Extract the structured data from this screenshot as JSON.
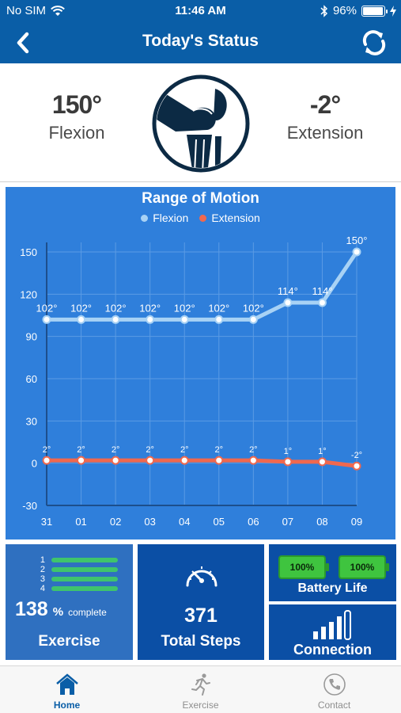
{
  "status_bar": {
    "carrier": "No SIM",
    "time": "11:46 AM",
    "battery_pct": "96%",
    "battery_level": 0.96
  },
  "nav": {
    "title": "Today's Status",
    "back_icon": "chevron-left-icon",
    "refresh_icon": "refresh-icon"
  },
  "summary": {
    "flexion_value": "150°",
    "flexion_label": "Flexion",
    "extension_value": "-2°",
    "extension_label": "Extension",
    "center_icon": "knee-joint-icon"
  },
  "chart_data": {
    "type": "line",
    "title": "Range of Motion",
    "categories": [
      "31",
      "01",
      "02",
      "03",
      "04",
      "05",
      "06",
      "07",
      "08",
      "09"
    ],
    "series": [
      {
        "name": "Flexion",
        "color": "#a8d2f5",
        "values": [
          102,
          102,
          102,
          102,
          102,
          102,
          102,
          114,
          114,
          150
        ],
        "labels": [
          "102°",
          "102°",
          "102°",
          "102°",
          "102°",
          "102°",
          "102°",
          "114°",
          "114°",
          "150°"
        ]
      },
      {
        "name": "Extension",
        "color": "#f0684e",
        "values": [
          2,
          2,
          2,
          2,
          2,
          2,
          2,
          1,
          1,
          -2
        ],
        "labels": [
          "2°",
          "2°",
          "2°",
          "2°",
          "2°",
          "2°",
          "2°",
          "1°",
          "1°",
          "-2°"
        ]
      }
    ],
    "ylim": [
      -30,
      150
    ],
    "yticks": [
      -30,
      0,
      30,
      60,
      90,
      120,
      150
    ],
    "grid": true,
    "legend": "top-center"
  },
  "tiles": {
    "exercise": {
      "rows": [
        "1",
        "2",
        "3",
        "4"
      ],
      "percent": "138",
      "percent_sign": "%",
      "complete": "complete",
      "label": "Exercise"
    },
    "steps": {
      "value": "371",
      "label": "Total Steps",
      "icon": "speedometer-icon"
    },
    "battery": {
      "left": "100%",
      "right": "100%",
      "label": "Battery Life"
    },
    "connection": {
      "label": "Connection",
      "icon": "signal-bars-icon"
    }
  },
  "tabs": [
    {
      "label": "Home",
      "icon": "home-icon",
      "active": true
    },
    {
      "label": "Exercise",
      "icon": "runner-icon",
      "active": false
    },
    {
      "label": "Contact",
      "icon": "phone-icon",
      "active": false
    }
  ],
  "colors": {
    "primary": "#0a5ea7",
    "chart_bg": "#2f7fdb",
    "accent_green": "#3fc46c"
  }
}
